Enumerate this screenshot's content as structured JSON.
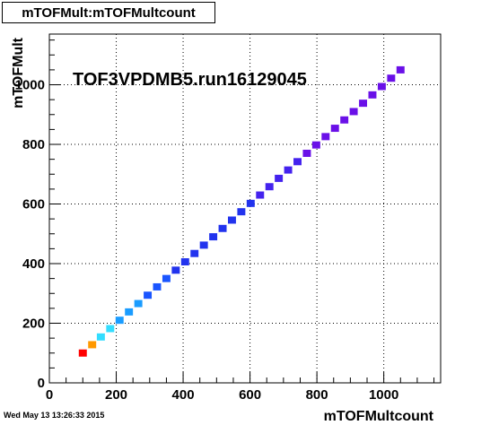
{
  "histogram": {
    "name_box": "mTOFMult:mTOFMultcount",
    "timestamp": "Wed May 13 13:26:33 2015"
  },
  "colors": {
    "palette": [
      "#ff0000",
      "#ff9900",
      "#33ddff",
      "#1a9cff",
      "#1a55ff",
      "#2233ee",
      "#4422ee",
      "#6a10e8"
    ]
  },
  "chart_data": {
    "type": "heatmap",
    "title": "TOF3VPDMB5.run16129045",
    "xlabel": "mTOFMultcount",
    "ylabel": "mTOFMult",
    "xlim": [
      0,
      1170
    ],
    "ylim": [
      0,
      1170
    ],
    "xticks": [
      0,
      200,
      400,
      600,
      800,
      1000
    ],
    "yticks": [
      0,
      200,
      400,
      600,
      800,
      1000
    ],
    "grid": true,
    "bin_size": 28,
    "points": [
      {
        "x": 100,
        "y": 100,
        "level": 0
      },
      {
        "x": 128,
        "y": 128,
        "level": 1
      },
      {
        "x": 154,
        "y": 154,
        "level": 2
      },
      {
        "x": 182,
        "y": 182,
        "level": 2
      },
      {
        "x": 210,
        "y": 210,
        "level": 3
      },
      {
        "x": 238,
        "y": 238,
        "level": 3
      },
      {
        "x": 266,
        "y": 266,
        "level": 3
      },
      {
        "x": 294,
        "y": 294,
        "level": 4
      },
      {
        "x": 322,
        "y": 322,
        "level": 4
      },
      {
        "x": 350,
        "y": 350,
        "level": 4
      },
      {
        "x": 378,
        "y": 378,
        "level": 5
      },
      {
        "x": 406,
        "y": 406,
        "level": 5
      },
      {
        "x": 434,
        "y": 434,
        "level": 5
      },
      {
        "x": 462,
        "y": 462,
        "level": 5
      },
      {
        "x": 490,
        "y": 490,
        "level": 5
      },
      {
        "x": 518,
        "y": 518,
        "level": 5
      },
      {
        "x": 546,
        "y": 546,
        "level": 5
      },
      {
        "x": 574,
        "y": 574,
        "level": 5
      },
      {
        "x": 602,
        "y": 602,
        "level": 5
      },
      {
        "x": 630,
        "y": 630,
        "level": 6
      },
      {
        "x": 658,
        "y": 658,
        "level": 6
      },
      {
        "x": 686,
        "y": 686,
        "level": 6
      },
      {
        "x": 714,
        "y": 714,
        "level": 6
      },
      {
        "x": 742,
        "y": 742,
        "level": 6
      },
      {
        "x": 770,
        "y": 770,
        "level": 7
      },
      {
        "x": 798,
        "y": 798,
        "level": 7
      },
      {
        "x": 826,
        "y": 826,
        "level": 7
      },
      {
        "x": 854,
        "y": 854,
        "level": 7
      },
      {
        "x": 882,
        "y": 882,
        "level": 7
      },
      {
        "x": 910,
        "y": 910,
        "level": 7
      },
      {
        "x": 938,
        "y": 938,
        "level": 7
      },
      {
        "x": 966,
        "y": 966,
        "level": 7
      },
      {
        "x": 994,
        "y": 994,
        "level": 7
      },
      {
        "x": 1022,
        "y": 1022,
        "level": 7
      },
      {
        "x": 1050,
        "y": 1050,
        "level": 7
      }
    ]
  }
}
